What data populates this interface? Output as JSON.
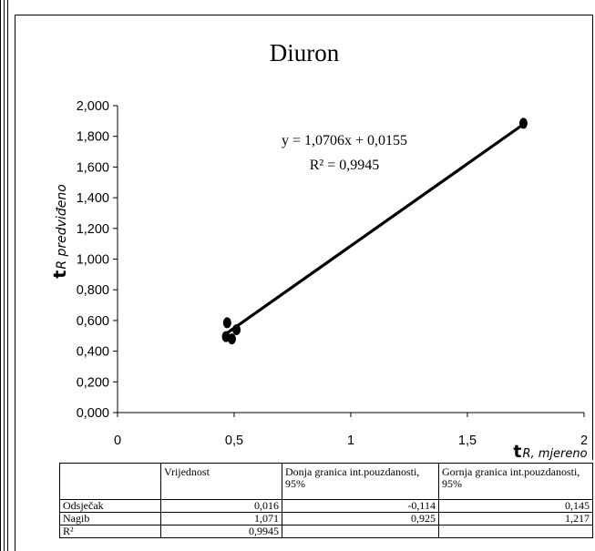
{
  "chart_data": {
    "type": "scatter",
    "title": "Diuron",
    "xlabel_main": "t",
    "xlabel_sub": "R, mjereno",
    "ylabel_main": "t",
    "ylabel_sub": "R predviđeno",
    "xlim": [
      0,
      2
    ],
    "ylim": [
      0,
      2
    ],
    "x_ticks": [
      "0",
      "0,5",
      "1",
      "1,5",
      "2"
    ],
    "y_ticks": [
      "0,000",
      "0,200",
      "0,400",
      "0,600",
      "0,800",
      "1,000",
      "1,200",
      "1,400",
      "1,600",
      "1,800",
      "2,000"
    ],
    "points": [
      {
        "x": 0.47,
        "y": 0.585
      },
      {
        "x": 0.465,
        "y": 0.495
      },
      {
        "x": 0.49,
        "y": 0.48
      },
      {
        "x": 0.51,
        "y": 0.54
      },
      {
        "x": 1.74,
        "y": 1.885
      }
    ],
    "trendline": {
      "slope": 1.0706,
      "intercept": 0.0155,
      "x_range": [
        0.465,
        1.74
      ]
    },
    "equation": "y = 1,0706x + 0,0155",
    "r2_label": "R² = 0,9945",
    "grid": false,
    "legend": "none"
  },
  "table": {
    "headers": [
      "",
      "Vrijednost",
      "Donja granica int.pouzdanosti, 95%",
      "Gornja granica int.pouzdanosti, 95%"
    ],
    "rows": [
      [
        "Odsječak",
        "0,016",
        "-0,114",
        "0,145"
      ],
      [
        "Nagib",
        "1,071",
        "0,925",
        "1,217"
      ],
      [
        "R²",
        "0,9945",
        "",
        ""
      ]
    ]
  }
}
